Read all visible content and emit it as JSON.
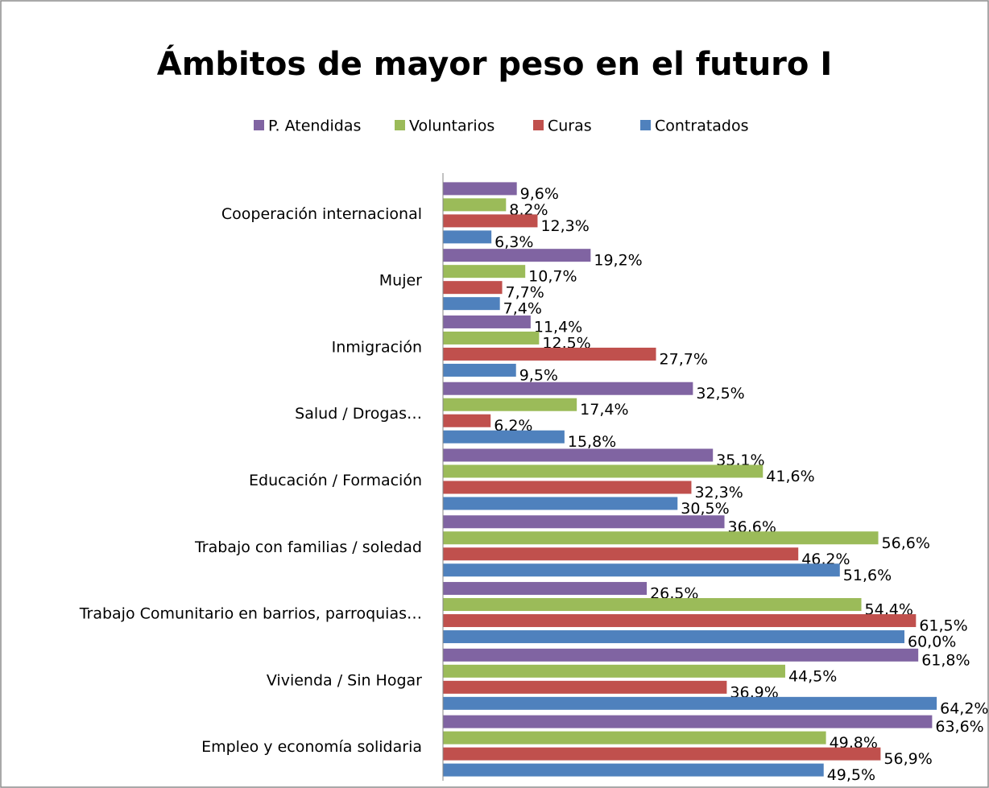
{
  "chart_data": {
    "type": "hbar",
    "title": "Ámbitos de mayor peso en el futuro I",
    "categories": [
      "Cooperación internacional",
      "Mujer",
      "Inmigración",
      "Salud / Drogas…",
      "Educación / Formación",
      "Trabajo con familias / soledad",
      "Trabajo Comunitario en barrios, parroquias…",
      "Vivienda / Sin Hogar",
      "Empleo y economía solidaria"
    ],
    "series": [
      {
        "name": "P. Atendidas",
        "color": "#8064a2",
        "values": [
          9.6,
          19.2,
          11.4,
          32.5,
          35.1,
          36.6,
          26.5,
          61.8,
          63.6
        ],
        "value_labels": [
          "9,6%",
          "19,2%",
          "11,4%",
          "32,5%",
          "35,1%",
          "36,6%",
          "26,5%",
          "61,8%",
          "63,6%"
        ]
      },
      {
        "name": "Voluntarios",
        "color": "#9bbb59",
        "values": [
          8.2,
          10.7,
          12.5,
          17.4,
          41.6,
          56.6,
          54.4,
          44.5,
          49.8
        ],
        "value_labels": [
          "8,2%",
          "10,7%",
          "12,5%",
          "17,4%",
          "41,6%",
          "56,6%",
          "54,4%",
          "44,5%",
          "49,8%"
        ]
      },
      {
        "name": "Curas",
        "color": "#c0504d",
        "values": [
          12.3,
          7.7,
          27.7,
          6.2,
          32.3,
          46.2,
          61.5,
          36.9,
          56.9
        ],
        "value_labels": [
          "12,3%",
          "7,7%",
          "27,7%",
          "6,2%",
          "32,3%",
          "46,2%",
          "61,5%",
          "36,9%",
          "56,9%"
        ]
      },
      {
        "name": "Contratados",
        "color": "#4f81bd",
        "values": [
          6.3,
          7.4,
          9.5,
          15.8,
          30.5,
          51.6,
          60.0,
          64.2,
          49.5
        ],
        "value_labels": [
          "6,3%",
          "7,4%",
          "9,5%",
          "15,8%",
          "30,5%",
          "51,6%",
          "60,0%",
          "64,2%",
          "49,5%"
        ]
      }
    ]
  }
}
